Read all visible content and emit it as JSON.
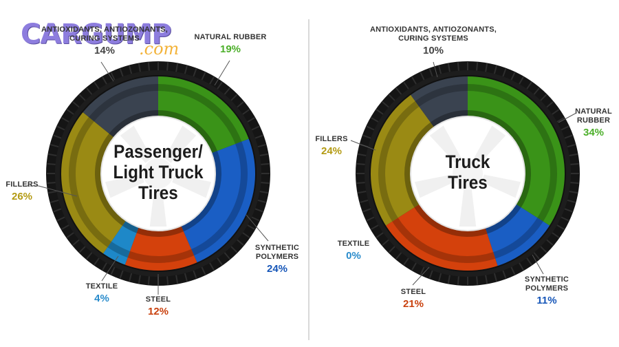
{
  "logo": {
    "text_main": "CARGUMP",
    "text_sub": ".com"
  },
  "colors": {
    "antioxidants": "#3a4350",
    "natural_rubber": "#3a9318",
    "synthetic_polymers": "#1a5ec4",
    "steel": "#d4410c",
    "textile": "#1e88c8",
    "fillers": "#9a8a14",
    "tire": "#1f1f1f",
    "pct_antioxidants": "#444444",
    "pct_natural_rubber": "#4caf2a",
    "pct_synthetic_polymers": "#1656b8",
    "pct_steel": "#c9410e",
    "pct_textile": "#2a8ccc",
    "pct_fillers": "#b39a12"
  },
  "chart_data": [
    {
      "type": "pie",
      "title": "Passenger/\nLight Truck\nTires",
      "categories": [
        "NATURAL RUBBER",
        "SYNTHETIC POLYMERS",
        "STEEL",
        "TEXTILE",
        "FILLERS",
        "ANTIOXIDANTS, ANTIOZONANTS, CURING SYSTEMS"
      ],
      "values": [
        19,
        24,
        12,
        4,
        26,
        14
      ],
      "labels": {
        "natural_rubber": {
          "name": "NATURAL RUBBER",
          "pct": "19%"
        },
        "synthetic_polymers": {
          "name": "SYNTHETIC\nPOLYMERS",
          "pct": "24%"
        },
        "steel": {
          "name": "STEEL",
          "pct": "12%"
        },
        "textile": {
          "name": "TEXTILE",
          "pct": "4%"
        },
        "fillers": {
          "name": "FILLERS",
          "pct": "26%"
        },
        "antioxidants": {
          "name": "ANTIOXIDANTS, ANTIOZONANTS,\nCURING SYSTEMS",
          "pct": "14%"
        }
      }
    },
    {
      "type": "pie",
      "title": "Truck\nTires",
      "categories": [
        "NATURAL RUBBER",
        "SYNTHETIC POLYMERS",
        "STEEL",
        "TEXTILE",
        "FILLERS",
        "ANTIOXIDANTS, ANTIOZONANTS, CURING SYSTEMS"
      ],
      "values": [
        34,
        11,
        21,
        0,
        24,
        10
      ],
      "labels": {
        "natural_rubber": {
          "name": "NATURAL\nRUBBER",
          "pct": "34%"
        },
        "synthetic_polymers": {
          "name": "SYNTHETIC\nPOLYMERS",
          "pct": "11%"
        },
        "steel": {
          "name": "STEEL",
          "pct": "21%"
        },
        "textile": {
          "name": "TEXTILE",
          "pct": "0%"
        },
        "fillers": {
          "name": "FILLERS",
          "pct": "24%"
        },
        "antioxidants": {
          "name": "ANTIOXIDANTS, ANTIOZONANTS,\nCURING SYSTEMS",
          "pct": "10%"
        }
      }
    }
  ]
}
